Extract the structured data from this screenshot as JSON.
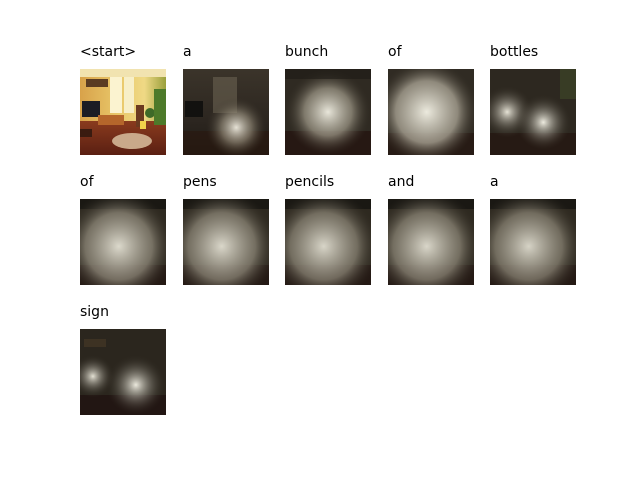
{
  "panels": [
    {
      "word": "<start>",
      "kind": "original"
    },
    {
      "word": "a",
      "kind": "attention",
      "spot": "low-center"
    },
    {
      "word": "bunch",
      "kind": "attention",
      "spot": "center"
    },
    {
      "word": "of",
      "kind": "attention",
      "spot": "broad-center"
    },
    {
      "word": "bottles",
      "kind": "attention",
      "spot": "left-and-center"
    },
    {
      "word": "of",
      "kind": "attention",
      "spot": "broad"
    },
    {
      "word": "pens",
      "kind": "attention",
      "spot": "broad"
    },
    {
      "word": "pencils",
      "kind": "attention",
      "spot": "broad"
    },
    {
      "word": "and",
      "kind": "attention",
      "spot": "broad"
    },
    {
      "word": "a",
      "kind": "attention",
      "spot": "broad"
    },
    {
      "word": "sign",
      "kind": "attention",
      "spot": "left-and-right"
    }
  ]
}
